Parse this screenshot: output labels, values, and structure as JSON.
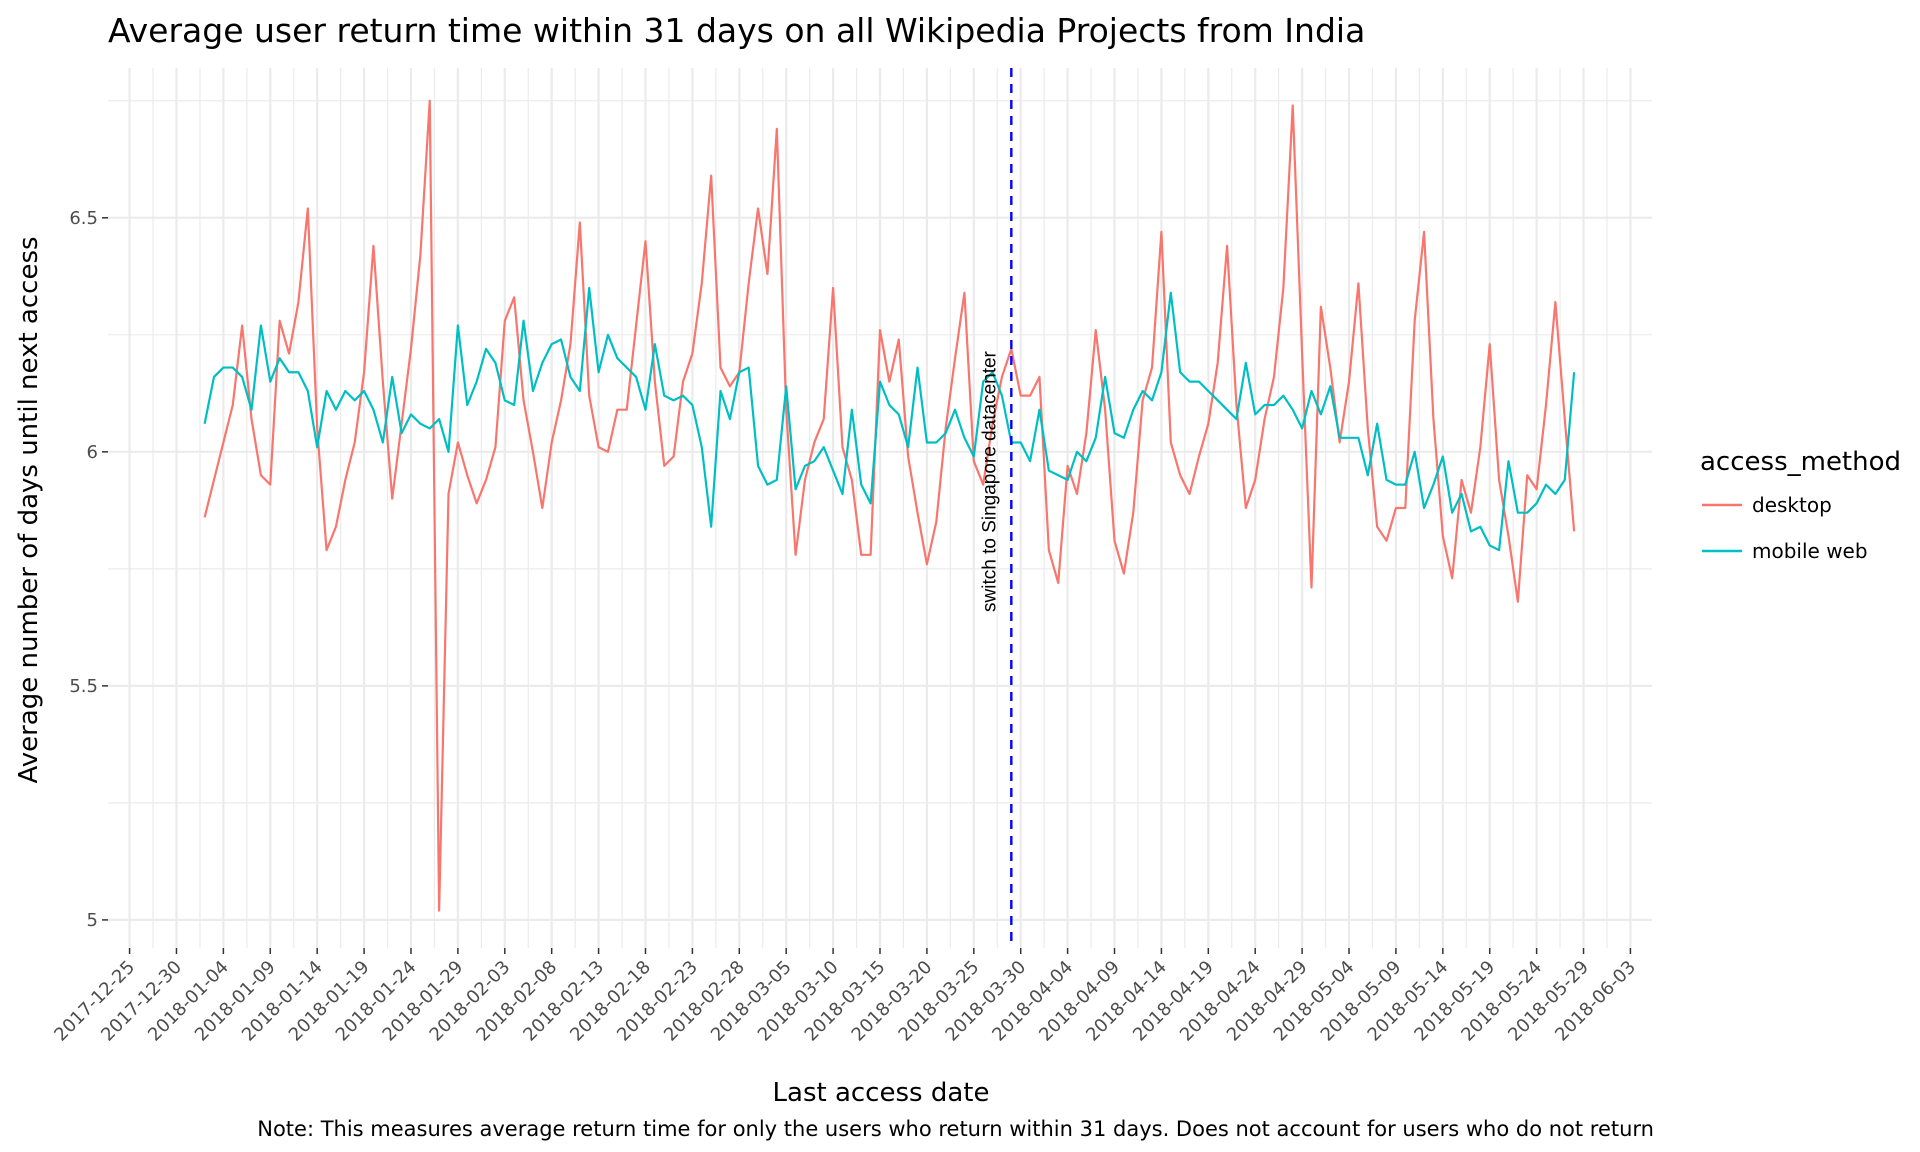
{
  "colors": {
    "desktop": "#F8766D",
    "mobile_web": "#00BFC4",
    "vline": "#0000FF",
    "grid": "#EBEBEB"
  },
  "chart_data": {
    "type": "line",
    "title": "Average user return time within 31 days on all Wikipedia Projects from India",
    "xlabel": "Last access date",
    "ylabel": "Average number of days until next access",
    "caption": "Note: This measures average return time for only the users who return within 31 days. Does not account for users who do not return",
    "x_start": "2018-01-02",
    "x_ticks": [
      "2017-12-25",
      "2017-12-30",
      "2018-01-04",
      "2018-01-09",
      "2018-01-14",
      "2018-01-19",
      "2018-01-24",
      "2018-01-29",
      "2018-02-03",
      "2018-02-08",
      "2018-02-13",
      "2018-02-18",
      "2018-02-23",
      "2018-02-28",
      "2018-03-05",
      "2018-03-10",
      "2018-03-15",
      "2018-03-20",
      "2018-03-25",
      "2018-03-30",
      "2018-04-04",
      "2018-04-09",
      "2018-04-14",
      "2018-04-19",
      "2018-04-24",
      "2018-04-29",
      "2018-05-04",
      "2018-05-09",
      "2018-05-14",
      "2018-05-19",
      "2018-05-24",
      "2018-05-29",
      "2018-06-03"
    ],
    "y_ticks": [
      5,
      5.5,
      6,
      6.5
    ],
    "y_tick_labels": [
      "5",
      "5.5",
      "6",
      "6.5"
    ],
    "ylim": [
      4.94,
      6.82
    ],
    "xlim": [
      "2017-12-25",
      "2018-06-03"
    ],
    "grid": true,
    "legend": {
      "title": "access_method",
      "position": "right"
    },
    "vline": {
      "x": "2018-03-29",
      "label": "switch to Singapore datacenter",
      "style": "dashed"
    },
    "series": [
      {
        "name": "desktop",
        "color": "#F8766D",
        "values": [
          5.86,
          5.94,
          6.02,
          6.1,
          6.27,
          6.07,
          5.95,
          5.93,
          6.28,
          6.21,
          6.32,
          6.52,
          6.05,
          5.79,
          5.84,
          5.94,
          6.02,
          6.17,
          6.44,
          6.15,
          5.9,
          6.06,
          6.22,
          6.42,
          6.75,
          5.02,
          5.91,
          6.02,
          5.95,
          5.89,
          5.94,
          6.01,
          6.28,
          6.33,
          6.11,
          6.0,
          5.88,
          6.02,
          6.11,
          6.23,
          6.49,
          6.12,
          6.01,
          6.0,
          6.09,
          6.09,
          6.27,
          6.45,
          6.15,
          5.97,
          5.99,
          6.15,
          6.21,
          6.36,
          6.59,
          6.18,
          6.14,
          6.17,
          6.36,
          6.52,
          6.38,
          6.69,
          6.09,
          5.78,
          5.94,
          6.02,
          6.07,
          6.35,
          6.01,
          5.94,
          5.78,
          5.78,
          6.26,
          6.15,
          6.24,
          5.99,
          5.87,
          5.76,
          5.85,
          6.05,
          6.2,
          6.34,
          5.98,
          5.93,
          6.06,
          6.16,
          6.22,
          6.12,
          6.12,
          6.16,
          5.79,
          5.72,
          5.97,
          5.91,
          6.04,
          6.26,
          6.09,
          5.81,
          5.74,
          5.87,
          6.11,
          6.18,
          6.47,
          6.02,
          5.95,
          5.91,
          5.99,
          6.06,
          6.19,
          6.44,
          6.1,
          5.88,
          5.94,
          6.07,
          6.16,
          6.35,
          6.74,
          6.21,
          5.71,
          6.31,
          6.18,
          6.02,
          6.15,
          6.36,
          6.05,
          5.84,
          5.81,
          5.88,
          5.88,
          6.28,
          6.47,
          6.07,
          5.82,
          5.73,
          5.94,
          5.87,
          6.01,
          6.23,
          5.94,
          5.82,
          5.68,
          5.95,
          5.92,
          6.1,
          6.32,
          6.07,
          5.83
        ],
        "note": ""
      },
      {
        "name": "mobile web",
        "color": "#00BFC4",
        "values": [
          6.06,
          6.16,
          6.18,
          6.18,
          6.16,
          6.09,
          6.27,
          6.15,
          6.2,
          6.17,
          6.17,
          6.13,
          6.01,
          6.13,
          6.09,
          6.13,
          6.11,
          6.13,
          6.09,
          6.02,
          6.16,
          6.04,
          6.08,
          6.06,
          6.05,
          6.07,
          6.0,
          6.27,
          6.1,
          6.15,
          6.22,
          6.19,
          6.11,
          6.1,
          6.28,
          6.13,
          6.19,
          6.23,
          6.24,
          6.16,
          6.13,
          6.35,
          6.17,
          6.25,
          6.2,
          6.18,
          6.16,
          6.09,
          6.23,
          6.12,
          6.11,
          6.12,
          6.1,
          6.01,
          5.84,
          6.13,
          6.07,
          6.17,
          6.18,
          5.97,
          5.93,
          5.94,
          6.14,
          5.92,
          5.97,
          5.98,
          6.01,
          5.96,
          5.91,
          6.09,
          5.93,
          5.89,
          6.15,
          6.1,
          6.08,
          6.01,
          6.18,
          6.02,
          6.02,
          6.04,
          6.09,
          6.03,
          5.99,
          6.15,
          6.17,
          6.12,
          6.02,
          6.02,
          5.98,
          6.09,
          5.96,
          5.95,
          5.94,
          6.0,
          5.98,
          6.03,
          6.16,
          6.04,
          6.03,
          6.09,
          6.13,
          6.11,
          6.17,
          6.34,
          6.17,
          6.15,
          6.15,
          6.13,
          6.11,
          6.09,
          6.07,
          6.19,
          6.08,
          6.1,
          6.1,
          6.12,
          6.09,
          6.05,
          6.13,
          6.08,
          6.14,
          6.03,
          6.03,
          6.03,
          5.95,
          6.06,
          5.94,
          5.93,
          5.93,
          6.0,
          5.88,
          5.93,
          5.99,
          5.87,
          5.91,
          5.83,
          5.84,
          5.8,
          5.79,
          5.98,
          5.87,
          5.87,
          5.89,
          5.93,
          5.91,
          5.94,
          6.17
        ]
      }
    ]
  }
}
